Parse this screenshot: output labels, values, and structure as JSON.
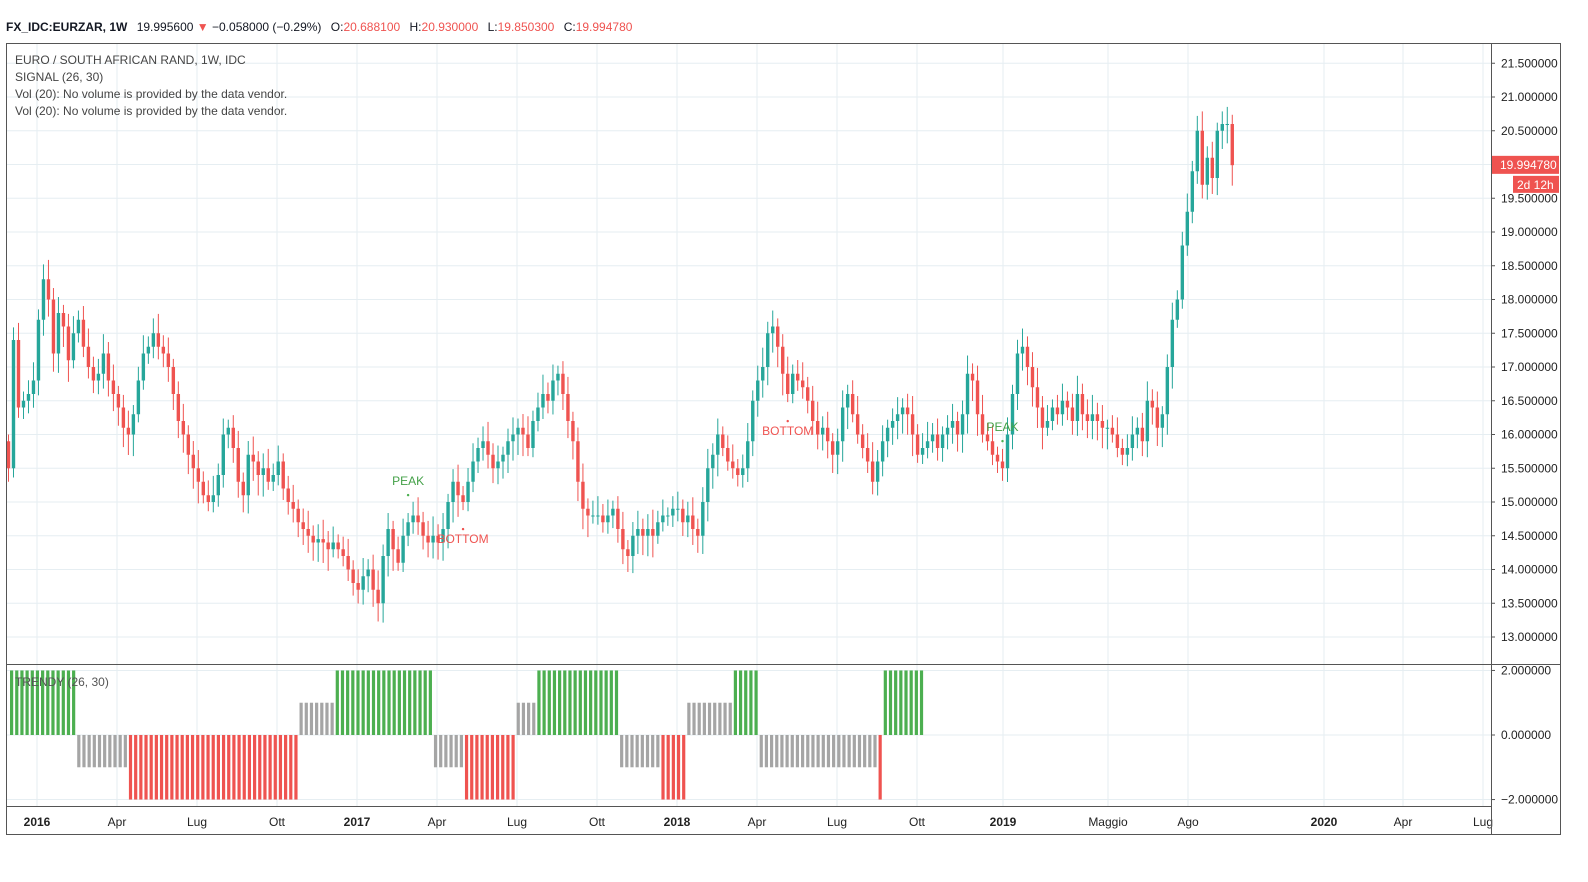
{
  "header": {
    "symbol": "FX_IDC:EURZAR, 1W",
    "last": "19.995600",
    "arrow": "▼",
    "change": "−0.058000 (−0.29%)",
    "o_label": "O:",
    "o_value": "20.688100",
    "h_label": "H:",
    "h_value": "20.930000",
    "l_label": "L:",
    "l_value": "19.850300",
    "c_label": "C:",
    "c_value": "19.994780"
  },
  "legend": {
    "title": "EURO / SOUTH AFRICAN RAND, 1W, IDC",
    "signal": "SIGNAL (26, 30)",
    "vol1": "Vol (20): No volume is provided by the data vendor.",
    "vol2": "Vol (20): No volume is provided by the data vendor."
  },
  "price_badge": {
    "value": "19.994780",
    "countdown": "2d 12h"
  },
  "colors": {
    "up": "#26a69a",
    "down": "#ef5350",
    "hist_green": "#4caf50",
    "hist_red": "#ef5350",
    "hist_gray": "#a5a5a5",
    "grid": "#e6eef2",
    "border": "#555555"
  },
  "chart_data": [
    {
      "type": "candlestick",
      "title": "EURO / SOUTH AFRICAN RAND, 1W, IDC",
      "ylim": [
        12.6,
        21.8
      ],
      "y_ticks": [
        "21.500000",
        "21.000000",
        "20.500000",
        "20.000000",
        "19.500000",
        "19.000000",
        "18.500000",
        "18.000000",
        "17.500000",
        "17.000000",
        "16.500000",
        "16.000000",
        "15.500000",
        "15.000000",
        "14.500000",
        "14.000000",
        "13.500000",
        "13.000000"
      ],
      "x_ticks": [
        {
          "label": "2016",
          "bold": true
        },
        {
          "label": "Apr"
        },
        {
          "label": "Lug"
        },
        {
          "label": "Ott"
        },
        {
          "label": "2017",
          "bold": true
        },
        {
          "label": "Apr"
        },
        {
          "label": "Lug"
        },
        {
          "label": "Ott"
        },
        {
          "label": "2018",
          "bold": true
        },
        {
          "label": "Apr"
        },
        {
          "label": "Lug"
        },
        {
          "label": "Ott"
        },
        {
          "label": "2019",
          "bold": true
        },
        {
          "label": "Maggio"
        },
        {
          "label": "Ago"
        },
        {
          "label": "2020",
          "bold": true
        },
        {
          "label": "Apr"
        },
        {
          "label": "Lug"
        }
      ],
      "closes": [
        15.5,
        17.4,
        16.4,
        16.5,
        16.6,
        16.8,
        17.7,
        18.3,
        18.0,
        17.2,
        17.8,
        17.6,
        17.1,
        17.5,
        17.7,
        17.3,
        17.0,
        16.8,
        16.9,
        17.2,
        16.8,
        16.6,
        16.4,
        16.1,
        16.0,
        16.3,
        16.8,
        17.2,
        17.3,
        17.5,
        17.3,
        17.2,
        17.0,
        16.6,
        16.2,
        16.0,
        15.7,
        15.5,
        15.3,
        15.1,
        15.0,
        15.1,
        15.4,
        16.0,
        16.1,
        15.8,
        15.3,
        15.1,
        15.7,
        15.6,
        15.4,
        15.5,
        15.3,
        15.4,
        15.6,
        15.2,
        15.0,
        14.9,
        14.7,
        14.6,
        14.5,
        14.4,
        14.45,
        14.4,
        14.3,
        14.4,
        14.3,
        14.2,
        14.0,
        13.8,
        13.7,
        13.9,
        14.0,
        13.7,
        13.5,
        14.2,
        14.6,
        14.3,
        14.1,
        14.5,
        14.7,
        14.8,
        14.7,
        14.5,
        14.4,
        14.5,
        14.4,
        14.6,
        15.0,
        15.3,
        15.1,
        15.0,
        15.3,
        15.6,
        15.8,
        15.9,
        15.7,
        15.5,
        15.6,
        15.7,
        15.9,
        16.0,
        16.1,
        16.0,
        15.8,
        16.2,
        16.4,
        16.6,
        16.5,
        16.8,
        16.9,
        16.6,
        16.2,
        15.9,
        15.3,
        14.9,
        14.8,
        14.8,
        14.8,
        14.7,
        14.8,
        14.9,
        14.6,
        14.3,
        14.2,
        14.5,
        14.6,
        14.5,
        14.6,
        14.5,
        14.7,
        14.8,
        14.8,
        14.9,
        14.9,
        14.7,
        14.8,
        14.6,
        14.5,
        15.0,
        15.5,
        15.7,
        16.0,
        15.8,
        15.6,
        15.5,
        15.4,
        15.5,
        15.9,
        16.5,
        16.8,
        17.0,
        17.5,
        17.6,
        17.3,
        16.9,
        16.6,
        16.9,
        16.8,
        16.7,
        16.5,
        16.2,
        16.0,
        16.1,
        15.9,
        15.7,
        15.9,
        16.4,
        16.6,
        16.3,
        16.0,
        15.8,
        15.6,
        15.3,
        15.6,
        15.9,
        16.1,
        16.2,
        16.3,
        16.4,
        16.3,
        16.0,
        15.7,
        15.8,
        15.9,
        16.0,
        15.8,
        16.0,
        16.1,
        16.2,
        16.0,
        16.3,
        16.9,
        16.8,
        16.3,
        16.0,
        15.9,
        15.7,
        15.6,
        15.5,
        16.0,
        16.6,
        17.2,
        17.3,
        17.0,
        16.7,
        16.4,
        16.1,
        16.2,
        16.4,
        16.3,
        16.5,
        16.4,
        16.2,
        16.6,
        16.3,
        16.2,
        16.3,
        16.2,
        16.1,
        16.1,
        16.0,
        15.8,
        15.7,
        15.8,
        16.0,
        16.1,
        15.9,
        16.5,
        16.4,
        16.1,
        16.3,
        17.0,
        17.7,
        18.0,
        18.8,
        19.3,
        19.9,
        20.5,
        19.7,
        20.1,
        19.8,
        20.5,
        20.6,
        20.6,
        19.99
      ]
    },
    {
      "type": "bar",
      "title": "TRENDY (26, 30)",
      "ylim": [
        -2.2,
        2.2
      ],
      "y_ticks": [
        "2.000000",
        "0.000000",
        "−2.000000"
      ],
      "segments": [
        {
          "count": 13,
          "value": 2,
          "color": "green"
        },
        {
          "count": 10,
          "value": -1,
          "color": "gray"
        },
        {
          "count": 33,
          "value": -2,
          "color": "red"
        },
        {
          "count": 7,
          "value": 1,
          "color": "gray"
        },
        {
          "count": 19,
          "value": 2,
          "color": "green"
        },
        {
          "count": 6,
          "value": -1,
          "color": "gray"
        },
        {
          "count": 10,
          "value": -2,
          "color": "red"
        },
        {
          "count": 4,
          "value": 1,
          "color": "gray"
        },
        {
          "count": 16,
          "value": 2,
          "color": "green"
        },
        {
          "count": 8,
          "value": -1,
          "color": "gray"
        },
        {
          "count": 5,
          "value": -2,
          "color": "red"
        },
        {
          "count": 9,
          "value": 1,
          "color": "gray"
        },
        {
          "count": 5,
          "value": 2,
          "color": "green"
        },
        {
          "count": 23,
          "value": -1,
          "color": "gray"
        },
        {
          "count": 1,
          "value": -2,
          "color": "red"
        },
        {
          "count": 8,
          "value": 2,
          "color": "green"
        }
      ]
    }
  ],
  "annotations": [
    {
      "label": "PEAK",
      "kind": "peak",
      "bar": 80
    },
    {
      "label": "BOTTOM",
      "kind": "bottom",
      "bar": 91
    },
    {
      "label": "BOTTOM",
      "kind": "bottom",
      "bar": 156
    },
    {
      "label": "PEAK",
      "kind": "peak",
      "bar": 199
    }
  ],
  "indicator_label": "TRENDY (26, 30)"
}
